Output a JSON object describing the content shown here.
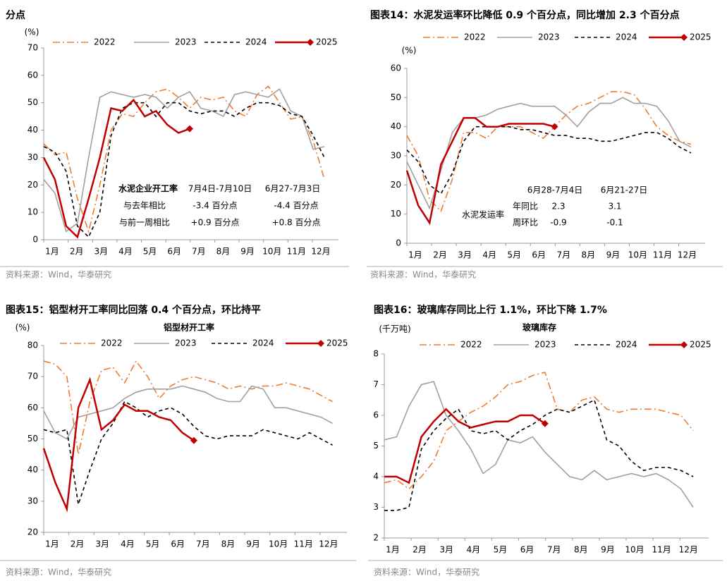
{
  "chart_data": [
    {
      "type": "line",
      "title": "分点",
      "ylabel": "(%)",
      "source": "资料来源：Wind，华泰研究",
      "legend": "top",
      "x": [
        1,
        3,
        5,
        7,
        9,
        11,
        13,
        15,
        17,
        19,
        21,
        23,
        25,
        27,
        29,
        31,
        33,
        35,
        37,
        39,
        41,
        43,
        45,
        47,
        49,
        51
      ],
      "xlim": [
        1,
        53.5
      ],
      "xticks": [
        {
          "value": 1,
          "label": "1月"
        },
        {
          "value": 5.35,
          "label": "2月"
        },
        {
          "value": 9.7,
          "label": "3月"
        },
        {
          "value": 14.05,
          "label": "4月"
        },
        {
          "value": 18.4,
          "label": "5月"
        },
        {
          "value": 22.75,
          "label": "6月"
        },
        {
          "value": 27.1,
          "label": "7月"
        },
        {
          "value": 31.45,
          "label": "8月"
        },
        {
          "value": 35.8,
          "label": "9月"
        },
        {
          "value": 40.15,
          "label": "10月"
        },
        {
          "value": 44.5,
          "label": "11月"
        },
        {
          "value": 48.85,
          "label": "12月"
        }
      ],
      "ylim": [
        0,
        70
      ],
      "yticks": [
        0,
        10,
        20,
        30,
        40,
        50,
        60,
        70
      ],
      "series": [
        {
          "name": "2022",
          "color": "#ED7D31",
          "style": "dashdot",
          "values": [
            35,
            31,
            32,
            15,
            3,
            20,
            40,
            46,
            45,
            50,
            54,
            55,
            52,
            48,
            52,
            51,
            52,
            47,
            45,
            53,
            56,
            50,
            44,
            45,
            36,
            22
          ]
        },
        {
          "name": "2023",
          "color": "#A0A0A0",
          "style": "solid",
          "values": [
            22,
            17,
            3,
            6,
            30,
            52,
            54,
            53,
            52,
            53,
            52,
            48,
            52,
            54,
            48,
            47,
            45,
            53,
            54,
            53,
            52,
            55,
            47,
            45,
            33,
            34
          ]
        },
        {
          "name": "2024",
          "color": "#000000",
          "style": "dashed",
          "values": [
            34,
            32,
            25,
            5,
            1,
            10,
            38,
            48,
            50,
            50,
            45,
            50,
            50,
            47,
            46,
            47,
            47,
            45,
            48,
            50,
            50,
            49,
            46,
            45,
            38,
            30
          ]
        },
        {
          "name": "2025",
          "color": "#C00000",
          "style": "solid",
          "marker": "diamond",
          "values": [
            30,
            22,
            5,
            1,
            15,
            30,
            48,
            47,
            51,
            45,
            47,
            42,
            39,
            40.5,
            null,
            null,
            null,
            null,
            null,
            null,
            null,
            null,
            null,
            null,
            null,
            null
          ]
        }
      ],
      "table": {
        "columns": [
          "水泥企业开工率",
          "7月4日-7月10日",
          "6月27-7月3日"
        ],
        "rows": [
          [
            "与去年相比",
            "-3.4 百分点",
            "-4.4 百分点"
          ],
          [
            "与前一周相比",
            "+0.9 百分点",
            "+0.8 百分点"
          ]
        ]
      }
    },
    {
      "type": "line",
      "title": "图表14：水泥发运率环比降低 0.9 个百分点，同比增加 2.3 个百分点",
      "ylabel": "(%)",
      "source": "资料来源：Wind，华泰研究",
      "legend": "top",
      "x": [
        1,
        3,
        5,
        7,
        9,
        11,
        13,
        15,
        17,
        19,
        21,
        23,
        25,
        27,
        29,
        31,
        33,
        35,
        37,
        39,
        41,
        43,
        45,
        47,
        49,
        51
      ],
      "xlim": [
        1,
        53.5
      ],
      "xticks": [
        {
          "value": 1,
          "label": "1月"
        },
        {
          "value": 5.35,
          "label": "2月"
        },
        {
          "value": 9.7,
          "label": "3月"
        },
        {
          "value": 14.05,
          "label": "4月"
        },
        {
          "value": 18.4,
          "label": "5月"
        },
        {
          "value": 22.75,
          "label": "6月"
        },
        {
          "value": 27.1,
          "label": "7月"
        },
        {
          "value": 31.45,
          "label": "8月"
        },
        {
          "value": 35.8,
          "label": "9月"
        },
        {
          "value": 40.15,
          "label": "10月"
        },
        {
          "value": 44.5,
          "label": "11月"
        },
        {
          "value": 48.85,
          "label": "12月"
        }
      ],
      "ylim": [
        0,
        60
      ],
      "yticks": [
        0,
        10,
        20,
        30,
        40,
        50,
        60
      ],
      "series": [
        {
          "name": "2022",
          "color": "#ED7D31",
          "style": "dashdot",
          "values": [
            37,
            30,
            15,
            11,
            22,
            38,
            38,
            36,
            40,
            40,
            40,
            38,
            36,
            40,
            44,
            47,
            48,
            50,
            52,
            52,
            51,
            46,
            40,
            37,
            35,
            34
          ]
        },
        {
          "name": "2023",
          "color": "#A0A0A0",
          "style": "solid",
          "values": [
            28,
            20,
            12,
            25,
            38,
            43,
            43,
            44,
            46,
            47,
            48,
            47,
            47,
            47,
            44,
            40,
            45,
            48,
            48,
            50,
            48,
            48,
            47,
            42,
            35,
            33
          ]
        },
        {
          "name": "2024",
          "color": "#000000",
          "style": "dashed",
          "values": [
            32,
            28,
            20,
            17,
            24,
            35,
            40,
            40,
            40,
            40,
            39,
            39,
            38,
            37,
            37,
            36,
            36,
            35,
            35,
            36,
            37,
            38,
            38,
            36,
            33,
            31
          ]
        },
        {
          "name": "2025",
          "color": "#C00000",
          "style": "solid",
          "marker": "diamond",
          "values": [
            25,
            13,
            7,
            27,
            35,
            43,
            43,
            40,
            40,
            41,
            41,
            41,
            41,
            40,
            null,
            null,
            null,
            null,
            null,
            null,
            null,
            null,
            null,
            null,
            null,
            null
          ]
        }
      ],
      "table": {
        "label": "水泥发运率",
        "columns": [
          "6月28-7月4日",
          "6月21-27日"
        ],
        "rows": [
          [
            "年同比",
            "2.3",
            "3.1"
          ],
          [
            "周环比",
            "-0.9",
            "-0.1"
          ]
        ]
      }
    },
    {
      "type": "line",
      "title": "图表15：铝型材开工率同比回落 0.4 个百分点，环比持平",
      "subtitle": "铝型材开工率",
      "ylabel": "(%)",
      "source": "资料来源：Wind，华泰研究",
      "legend": "top",
      "x": [
        1,
        3,
        5,
        7,
        9,
        11,
        13,
        15,
        17,
        19,
        21,
        23,
        25,
        27,
        29,
        31,
        33,
        35,
        37,
        39,
        41,
        43,
        45,
        47,
        49,
        51
      ],
      "xlim": [
        1,
        53.5
      ],
      "xticks": [
        {
          "value": 1,
          "label": "1月"
        },
        {
          "value": 5.35,
          "label": "2月"
        },
        {
          "value": 9.7,
          "label": "3月"
        },
        {
          "value": 14.05,
          "label": "4月"
        },
        {
          "value": 18.4,
          "label": "5月"
        },
        {
          "value": 22.75,
          "label": "6月"
        },
        {
          "value": 27.1,
          "label": "7月"
        },
        {
          "value": 31.45,
          "label": "8月"
        },
        {
          "value": 35.8,
          "label": "9月"
        },
        {
          "value": 40.15,
          "label": "10月"
        },
        {
          "value": 44.5,
          "label": "11月"
        },
        {
          "value": 48.85,
          "label": "12月"
        }
      ],
      "ylim": [
        20,
        80
      ],
      "yticks": [
        20,
        30,
        40,
        50,
        60,
        70,
        80
      ],
      "series": [
        {
          "name": "2022",
          "color": "#ED7D31",
          "style": "dashdot",
          "values": [
            75,
            74,
            70,
            45,
            62,
            72,
            73,
            68,
            75,
            70,
            63,
            67,
            69,
            70,
            69,
            68,
            66,
            67,
            66,
            67,
            67,
            68,
            67,
            66,
            64,
            62
          ]
        },
        {
          "name": "2023",
          "color": "#A0A0A0",
          "style": "solid",
          "values": [
            59,
            52,
            50,
            57,
            58,
            59,
            60,
            63,
            65,
            66,
            66,
            66,
            67,
            66,
            65,
            63,
            62,
            62,
            67,
            66,
            60,
            60,
            59,
            58,
            57,
            55
          ]
        },
        {
          "name": "2024",
          "color": "#000000",
          "style": "dashed",
          "values": [
            53,
            52,
            53,
            29,
            40,
            50,
            55,
            62,
            60,
            57,
            59,
            60,
            58,
            54,
            51,
            50,
            51,
            51,
            51,
            53,
            52,
            51,
            50,
            52,
            50,
            48
          ]
        },
        {
          "name": "2025",
          "color": "#C00000",
          "style": "solid",
          "marker": "diamond",
          "values": [
            47,
            36,
            27.5,
            60,
            69,
            53,
            56,
            61,
            59,
            59,
            57,
            56,
            52,
            49.5,
            null,
            null,
            null,
            null,
            null,
            null,
            null,
            null,
            null,
            null,
            null,
            null
          ]
        }
      ]
    },
    {
      "type": "line",
      "title": "图表16：玻璃库存同比上行 1.1%，环比下降 1.7%",
      "subtitle": "玻璃库存",
      "ylabel": "(千万吨)",
      "source": "资料来源：Wind，华泰研究",
      "legend": "top",
      "x": [
        1,
        3,
        5,
        7,
        9,
        11,
        13,
        15,
        17,
        19,
        21,
        23,
        25,
        27,
        29,
        31,
        33,
        35,
        37,
        39,
        41,
        43,
        45,
        47,
        49,
        51
      ],
      "xlim": [
        1,
        53.5
      ],
      "xticks": [
        {
          "value": 1,
          "label": "1月"
        },
        {
          "value": 5.35,
          "label": "2月"
        },
        {
          "value": 9.7,
          "label": "3月"
        },
        {
          "value": 14.05,
          "label": "4月"
        },
        {
          "value": 18.4,
          "label": "5月"
        },
        {
          "value": 22.75,
          "label": "6月"
        },
        {
          "value": 27.1,
          "label": "7月"
        },
        {
          "value": 31.45,
          "label": "8月"
        },
        {
          "value": 35.8,
          "label": "9月"
        },
        {
          "value": 40.15,
          "label": "10月"
        },
        {
          "value": 44.5,
          "label": "11月"
        },
        {
          "value": 48.85,
          "label": "12月"
        }
      ],
      "ylim": [
        2,
        8
      ],
      "yticks": [
        2,
        3,
        4,
        5,
        6,
        7,
        8
      ],
      "series": [
        {
          "name": "2022",
          "color": "#ED7D31",
          "style": "dashdot",
          "values": [
            3.8,
            3.9,
            3.6,
            4.0,
            4.5,
            5.5,
            5.8,
            6.1,
            6.3,
            6.6,
            7.0,
            7.1,
            7.3,
            7.4,
            6.2,
            6.1,
            6.5,
            6.6,
            6.2,
            6.1,
            6.2,
            6.2,
            6.2,
            6.1,
            6.0,
            5.5
          ]
        },
        {
          "name": "2023",
          "color": "#A0A0A0",
          "style": "solid",
          "values": [
            5.2,
            5.3,
            6.3,
            7.0,
            7.1,
            6.0,
            5.5,
            4.9,
            4.1,
            4.4,
            5.2,
            5.1,
            5.3,
            4.8,
            4.4,
            4.0,
            3.9,
            4.2,
            3.9,
            4.0,
            4.1,
            4.0,
            4.1,
            3.9,
            3.6,
            3.0
          ]
        },
        {
          "name": "2024",
          "color": "#000000",
          "style": "dashed",
          "values": [
            2.9,
            2.9,
            3.0,
            4.9,
            5.5,
            5.9,
            6.2,
            5.5,
            5.4,
            5.5,
            5.2,
            5.5,
            5.7,
            6.0,
            6.2,
            6.1,
            6.3,
            6.5,
            5.2,
            5.0,
            4.5,
            4.2,
            4.3,
            4.3,
            4.2,
            4.0
          ]
        },
        {
          "name": "2025",
          "color": "#C00000",
          "style": "solid",
          "marker": "diamond",
          "values": [
            4.0,
            4.0,
            3.8,
            5.3,
            5.8,
            6.2,
            5.8,
            5.6,
            5.7,
            5.8,
            5.8,
            6.0,
            6.0,
            5.73,
            null,
            null,
            null,
            null,
            null,
            null,
            null,
            null,
            null,
            null,
            null,
            null
          ]
        }
      ]
    }
  ]
}
